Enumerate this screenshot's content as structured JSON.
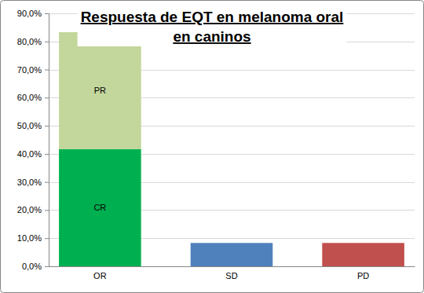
{
  "chart_data": {
    "type": "bar",
    "title": "Respuesta de EQT en melanoma oral en caninos",
    "categories": [
      "OR",
      "SD",
      "PD"
    ],
    "stacked": true,
    "grid": true,
    "ylim": [
      0,
      90
    ],
    "yticks": [
      {
        "value": 0,
        "label": "0,0%"
      },
      {
        "value": 10,
        "label": "10,0%"
      },
      {
        "value": 20,
        "label": "20,0%"
      },
      {
        "value": 30,
        "label": "30,0%"
      },
      {
        "value": 40,
        "label": "40,0%"
      },
      {
        "value": 50,
        "label": "50,0%"
      },
      {
        "value": 60,
        "label": "60,0%"
      },
      {
        "value": 70,
        "label": "70,0%"
      },
      {
        "value": 80,
        "label": "80,0%"
      },
      {
        "value": 90,
        "label": "90,0%"
      }
    ],
    "series": [
      {
        "name": "CR",
        "color": "#00b050",
        "values": [
          41.7,
          null,
          null
        ]
      },
      {
        "name": "PR",
        "color": "#c3d69b",
        "values": [
          41.6,
          null,
          null
        ]
      },
      {
        "color": "#4f81bd",
        "values": [
          null,
          8.3,
          null
        ]
      },
      {
        "color": "#c0504d",
        "values": [
          null,
          null,
          8.3
        ]
      }
    ]
  }
}
